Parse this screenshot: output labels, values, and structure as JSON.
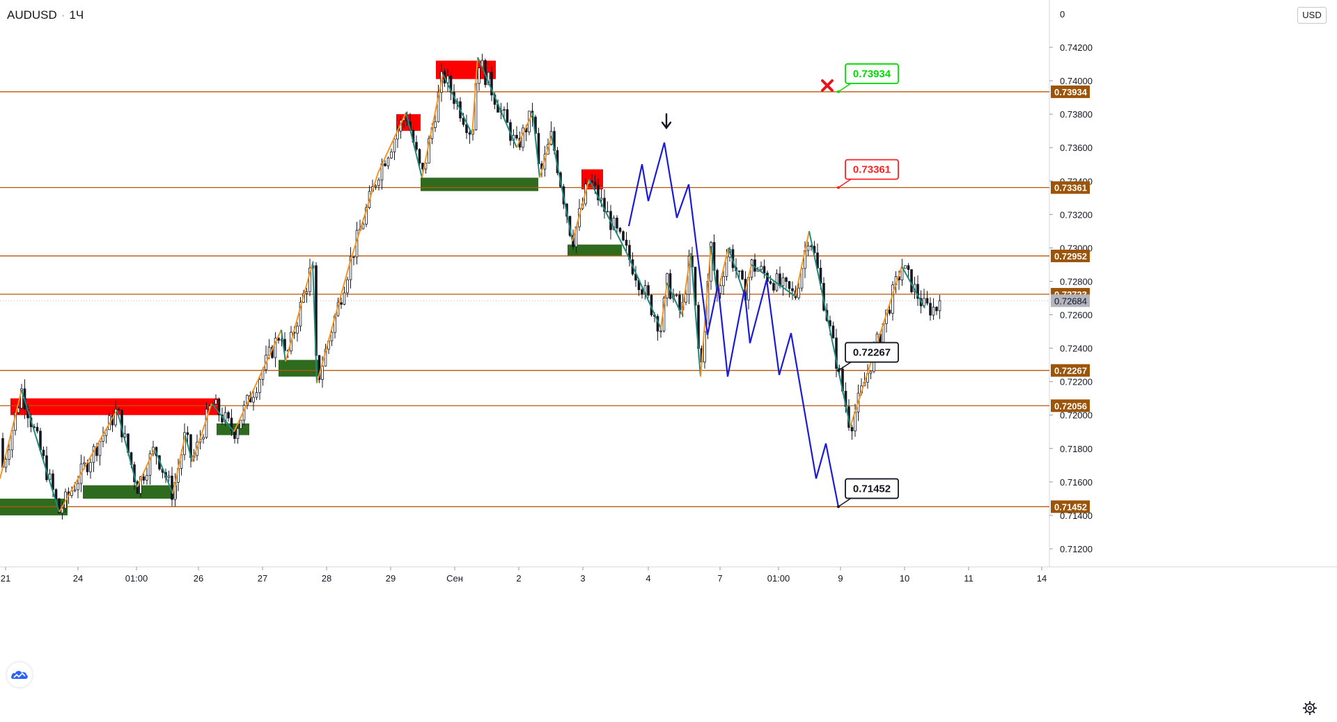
{
  "symbol": "AUDUSD",
  "interval": "1Ч",
  "currency": "USD",
  "colors": {
    "level_line": "#b8570a",
    "level_label_bg": "#9b5408",
    "current_label_bg": "#b2b5be",
    "resistance_zone": "#ff0000",
    "support_zone": "#2e6b1e",
    "zigzag_up": "#f7931e",
    "zigzag_down": "#1f8a7a",
    "forecast": "#1a1ad8",
    "target_green": "#00dd00",
    "target_red": "#ff2020",
    "candle": "#131722"
  },
  "chart_data": {
    "type": "candlestick",
    "ylim": [
      0.711,
      0.743
    ],
    "y_ticks": [
      "0.74200",
      "0.74000",
      "0.73800",
      "0.73600",
      "0.73400",
      "0.73200",
      "0.73000",
      "0.72800",
      "0.72600",
      "0.72400",
      "0.72200",
      "0.72000",
      "0.71800",
      "0.71600",
      "0.71400",
      "0.71200"
    ],
    "y_top_tick": "0",
    "x_ticks": [
      "21",
      "24",
      "01:00",
      "26",
      "27",
      "28",
      "29",
      "Сен",
      "2",
      "3",
      "4",
      "7",
      "01:00",
      "9",
      "10",
      "11",
      "14"
    ],
    "current_price": "0.72684",
    "levels": [
      {
        "label": "0.73934",
        "value": 0.73934
      },
      {
        "label": "0.73361",
        "value": 0.73361
      },
      {
        "label": "0.72952",
        "value": 0.72952
      },
      {
        "label": "0.72723",
        "value": 0.72723
      },
      {
        "label": "0.72267",
        "value": 0.72267
      },
      {
        "label": "0.72056",
        "value": 0.72056
      },
      {
        "label": "0.71452",
        "value": 0.71452
      }
    ],
    "targets": [
      {
        "label": "0.73934",
        "value": 0.73934,
        "style": "green",
        "bar": 1204
      },
      {
        "label": "0.73361",
        "value": 0.73361,
        "style": "red",
        "bar": 1204
      },
      {
        "label": "0.72267",
        "value": 0.72267,
        "style": "dark",
        "bar": 1204
      },
      {
        "label": "0.71452",
        "value": 0.71452,
        "style": "dark",
        "bar": 1204
      }
    ],
    "resistance_zones": [
      {
        "x1": 15,
        "x2": 316,
        "top": 0.721,
        "bottom": 0.72
      },
      {
        "x1": 569,
        "x2": 604,
        "top": 0.738,
        "bottom": 0.737
      },
      {
        "x1": 626,
        "x2": 712,
        "top": 0.7412,
        "bottom": 0.7401
      },
      {
        "x1": 835,
        "x2": 866,
        "top": 0.7347,
        "bottom": 0.7335
      }
    ],
    "support_zones": [
      {
        "x1": 0,
        "x2": 97,
        "top": 0.715,
        "bottom": 0.714
      },
      {
        "x1": 119,
        "x2": 254,
        "top": 0.7158,
        "bottom": 0.715
      },
      {
        "x1": 311,
        "x2": 358,
        "top": 0.7195,
        "bottom": 0.7188
      },
      {
        "x1": 400,
        "x2": 458,
        "top": 0.7233,
        "bottom": 0.7223
      },
      {
        "x1": 604,
        "x2": 773,
        "top": 0.7342,
        "bottom": 0.7334
      },
      {
        "x1": 815,
        "x2": 893,
        "top": 0.7302,
        "bottom": 0.7295
      }
    ],
    "zigzag": [
      [
        0,
        0.7162
      ],
      [
        31,
        0.7215
      ],
      [
        85,
        0.7142
      ],
      [
        168,
        0.7203
      ],
      [
        197,
        0.7157
      ],
      [
        222,
        0.718
      ],
      [
        248,
        0.7153
      ],
      [
        266,
        0.7188
      ],
      [
        276,
        0.7172
      ],
      [
        304,
        0.7207
      ],
      [
        336,
        0.719
      ],
      [
        404,
        0.7251
      ],
      [
        410,
        0.7232
      ],
      [
        449,
        0.7291
      ],
      [
        455,
        0.7219
      ],
      [
        503,
        0.7292
      ],
      [
        543,
        0.7345
      ],
      [
        583,
        0.7381
      ],
      [
        606,
        0.7342
      ],
      [
        636,
        0.7404
      ],
      [
        678,
        0.7368
      ],
      [
        686,
        0.7414
      ],
      [
        742,
        0.736
      ],
      [
        765,
        0.7381
      ],
      [
        775,
        0.7342
      ],
      [
        792,
        0.7367
      ],
      [
        822,
        0.7304
      ],
      [
        846,
        0.7341
      ],
      [
        900,
        0.7297
      ],
      [
        949,
        0.7252
      ],
      [
        958,
        0.7279
      ],
      [
        979,
        0.726
      ],
      [
        992,
        0.7297
      ],
      [
        1006,
        0.7223
      ],
      [
        1021,
        0.7301
      ],
      [
        1030,
        0.7272
      ],
      [
        1046,
        0.73
      ],
      [
        1069,
        0.7272
      ],
      [
        1079,
        0.729
      ],
      [
        1142,
        0.7271
      ],
      [
        1162,
        0.731
      ],
      [
        1221,
        0.7193
      ],
      [
        1295,
        0.7289
      ],
      [
        1328,
        0.7264
      ]
    ],
    "forecast": [
      [
        903,
        0.7313
      ],
      [
        922,
        0.735
      ],
      [
        931,
        0.7328
      ],
      [
        954,
        0.7363
      ],
      [
        972,
        0.7318
      ],
      [
        989,
        0.7338
      ],
      [
        1016,
        0.7248
      ],
      [
        1031,
        0.7278
      ],
      [
        1045,
        0.7223
      ],
      [
        1069,
        0.7275
      ],
      [
        1077,
        0.7243
      ],
      [
        1101,
        0.7281
      ],
      [
        1119,
        0.7224
      ],
      [
        1136,
        0.7249
      ],
      [
        1172,
        0.7162
      ],
      [
        1186,
        0.7183
      ],
      [
        1204,
        0.7145
      ]
    ],
    "candles": {
      "start_bar": 4,
      "end_bar": 1352,
      "step": 4.5,
      "first_close": 0.7186,
      "last_close": 0.72684
    }
  }
}
